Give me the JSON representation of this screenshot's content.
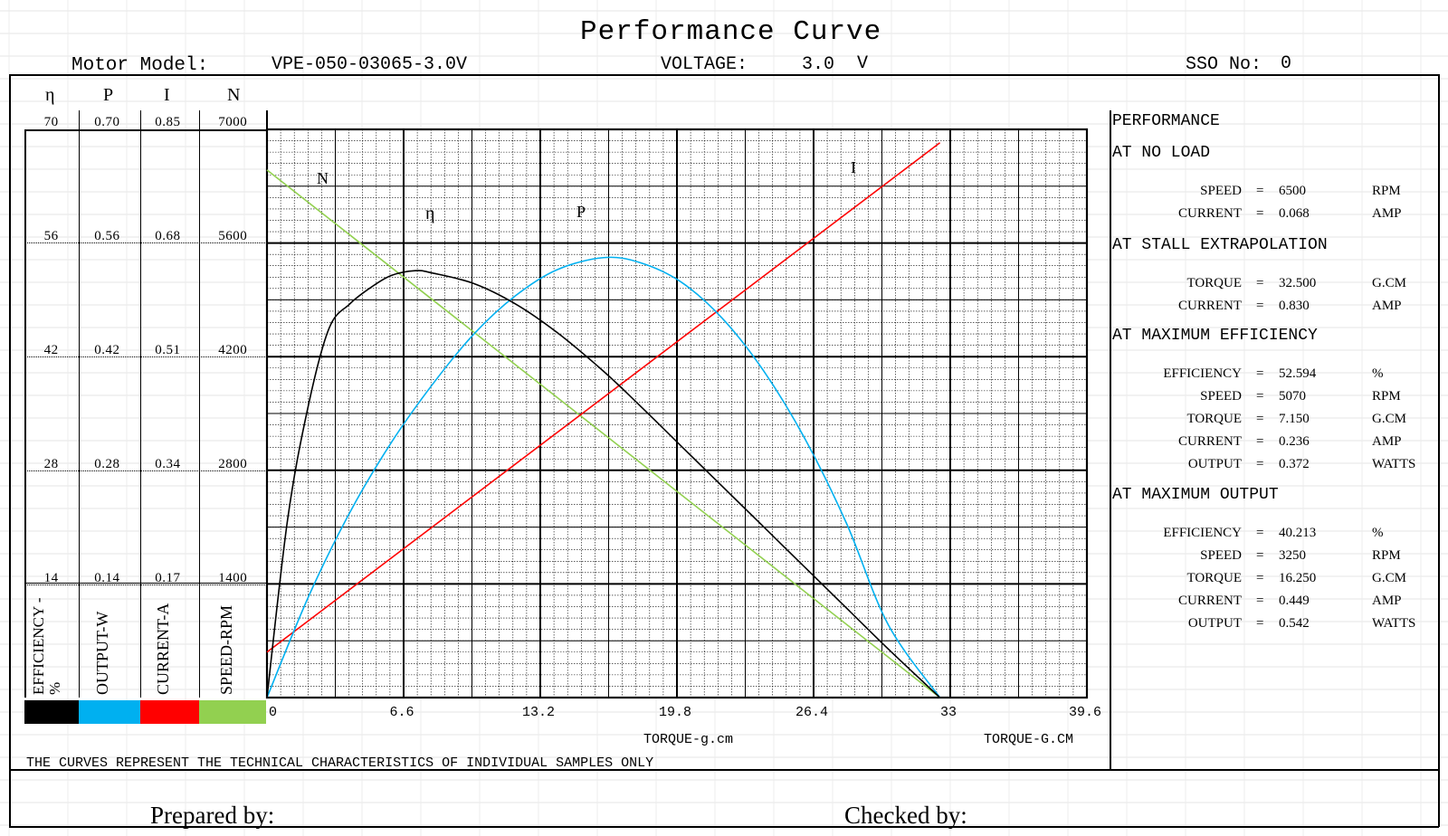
{
  "header": {
    "title": "Performance Curve",
    "motor_model_label": "Motor Model:",
    "motor_model_value": "VPE-050-03065-3.0V",
    "voltage_label": "VOLTAGE:",
    "voltage_value": "3.0",
    "voltage_unit": "V",
    "sso_label": "SSO No:",
    "sso_value": "0"
  },
  "scale_table": {
    "headers": [
      "η",
      "P",
      "I",
      "N"
    ],
    "rows": [
      [
        "70",
        "0.70",
        "0.85",
        "7000"
      ],
      [
        "56",
        "0.56",
        "0.68",
        "5600"
      ],
      [
        "42",
        "0.42",
        "0.51",
        "4200"
      ],
      [
        "28",
        "0.28",
        "0.34",
        "2800"
      ],
      [
        "14",
        "0.14",
        "0.17",
        "1400"
      ]
    ],
    "legend_labels": [
      "EFFICIENCY -%",
      "OUTPUT-W",
      "CURRENT-A",
      "SPEED-RPM"
    ],
    "legend_colors": [
      "#000000",
      "#00b0f0",
      "#ff0000",
      "#92d050"
    ]
  },
  "performance": {
    "title": "PERFORMANCE",
    "sections": [
      {
        "heading": "AT NO LOAD",
        "rows": [
          {
            "label": "SPEED",
            "eq": "=",
            "value": "6500",
            "unit": "RPM"
          },
          {
            "label": "CURRENT",
            "eq": "=",
            "value": "0.068",
            "unit": "AMP"
          }
        ]
      },
      {
        "heading": "AT STALL EXTRAPOLATION",
        "rows": [
          {
            "label": "TORQUE",
            "eq": "=",
            "value": "32.500",
            "unit": "G.CM"
          },
          {
            "label": "CURRENT",
            "eq": "=",
            "value": "0.830",
            "unit": "AMP"
          }
        ]
      },
      {
        "heading": "AT MAXIMUM EFFICIENCY",
        "rows": [
          {
            "label": "EFFICIENCY",
            "eq": "=",
            "value": "52.594",
            "unit": "%"
          },
          {
            "label": "SPEED",
            "eq": "=",
            "value": "5070",
            "unit": "RPM"
          },
          {
            "label": "TORQUE",
            "eq": "=",
            "value": "7.150",
            "unit": "G.CM"
          },
          {
            "label": "CURRENT",
            "eq": "=",
            "value": "0.236",
            "unit": "AMP"
          },
          {
            "label": "OUTPUT",
            "eq": "=",
            "value": "0.372",
            "unit": "WATTS"
          }
        ]
      },
      {
        "heading": "AT MAXIMUM OUTPUT",
        "rows": [
          {
            "label": "EFFICIENCY",
            "eq": "=",
            "value": "40.213",
            "unit": "%"
          },
          {
            "label": "SPEED",
            "eq": "=",
            "value": "3250",
            "unit": "RPM"
          },
          {
            "label": "TORQUE",
            "eq": "=",
            "value": "16.250",
            "unit": "G.CM"
          },
          {
            "label": "CURRENT",
            "eq": "=",
            "value": "0.449",
            "unit": "AMP"
          },
          {
            "label": "OUTPUT",
            "eq": "=",
            "value": "0.542",
            "unit": "WATTS"
          }
        ]
      }
    ]
  },
  "chart_data": {
    "type": "line",
    "x_ticks": [
      "0",
      "6.6",
      "13.2",
      "19.8",
      "26.4",
      "33",
      "39.6"
    ],
    "x_tick_values": [
      0,
      6.6,
      13.2,
      19.8,
      26.4,
      33,
      39.6
    ],
    "xlim": [
      0,
      39.6
    ],
    "xlabel": "TORQUE-g.cm",
    "xlabel_right": "TORQUE-G.CM",
    "grid": true,
    "series": [
      {
        "name": "N",
        "color": "#92d050",
        "ylim": [
          0,
          7000
        ],
        "x": [
          0,
          32.5
        ],
        "y": [
          6500,
          0
        ]
      },
      {
        "name": "I",
        "color": "#ff0000",
        "ylim": [
          0,
          0.85
        ],
        "x": [
          0,
          32.5
        ],
        "y": [
          0.068,
          0.83
        ]
      },
      {
        "name": "P",
        "color": "#00b0f0",
        "ylim": [
          0,
          0.7
        ],
        "x": [
          0,
          2,
          4,
          6,
          8,
          10,
          12,
          14,
          16.25,
          18,
          20,
          22,
          24,
          26,
          28,
          30,
          32.5
        ],
        "y": [
          0,
          0.124,
          0.228,
          0.314,
          0.386,
          0.448,
          0.495,
          0.527,
          0.542,
          0.536,
          0.512,
          0.467,
          0.402,
          0.318,
          0.214,
          0.09,
          0
        ]
      },
      {
        "name": "η",
        "color": "#000000",
        "ylim": [
          0,
          70
        ],
        "x": [
          0,
          1.0,
          2.0,
          3.0,
          4.0,
          5.0,
          6.0,
          7.15,
          8.0,
          10.0,
          12.0,
          14.0,
          16.25,
          18.0,
          20.0,
          22.0,
          24.0,
          26.0,
          28.0,
          30.0,
          32.5
        ],
        "y": [
          0,
          22,
          36,
          45.5,
          48.5,
          50.5,
          52.0,
          52.594,
          52.3,
          51.0,
          48.5,
          45.0,
          40.213,
          36.0,
          31.0,
          26.0,
          21.0,
          16.0,
          11.0,
          6.0,
          0
        ]
      }
    ]
  },
  "footer": {
    "note": "THE CURVES REPRESENT THE TECHNICAL CHARACTERISTICS OF INDIVIDUAL SAMPLES ONLY",
    "prepared_by": "Prepared by:",
    "checked_by": "Checked by:"
  }
}
